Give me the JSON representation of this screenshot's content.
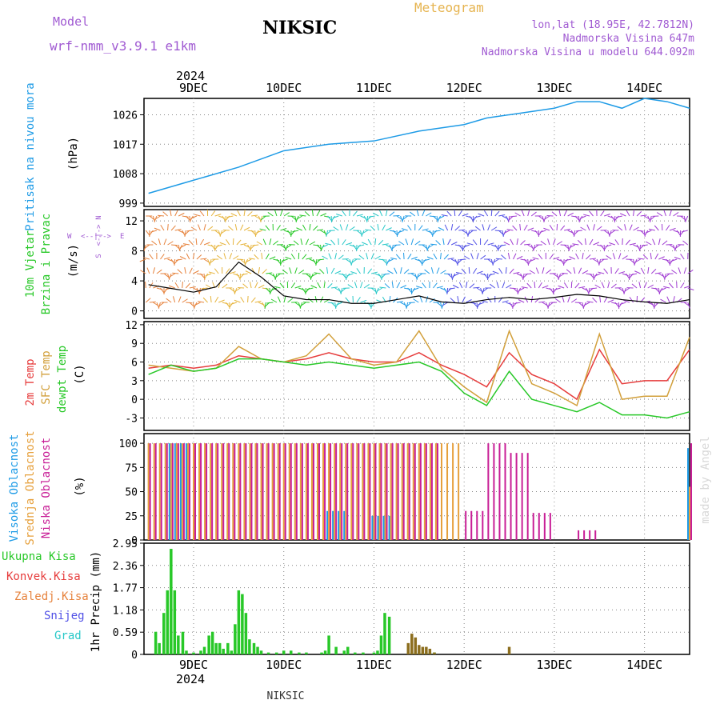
{
  "header": {
    "model_label": "Model",
    "model_name": "wrf-nmm_v3.9.1  e1km",
    "station": "NIKSIC",
    "product": "Meteogram",
    "lonlat": "lon,lat (18.95E, 42.7812N)",
    "elevation": "Nadmorska Visina 647m",
    "model_elevation": "Nadmorska Visina u modelu 644.092m"
  },
  "footer": {
    "station": "NIKSIC",
    "watermark": "made by Angel"
  },
  "time_axis": {
    "year": "2024",
    "days": [
      "9DEC",
      "10DEC",
      "11DEC",
      "12DEC",
      "13DEC",
      "14DEC"
    ]
  },
  "panels": {
    "pressure": {
      "label": "Pritisak na nivou mora",
      "unit": "(hPa)"
    },
    "wind": {
      "label_1": "10m Vjetar",
      "label_2": "Brzina i Pravac",
      "unit": "(m/s)",
      "compass_n": "N",
      "compass_w": "W",
      "compass_e": "E",
      "compass_s": "S",
      "compass_ns": "<-|->",
      "compass_we": "<--|-->"
    },
    "temp": {
      "label_1": "2m Temp",
      "label_2": "SFC Temp",
      "label_3": "dewpt Temp",
      "unit": "(C)"
    },
    "cloud": {
      "label_1": "Visoka Oblacnost",
      "label_2": "Srednja Oblacnost",
      "label_3": "Niska Oblacnost",
      "unit": "(%)"
    },
    "precip": {
      "legend_1": "Ukupna Kisa",
      "legend_2": "Konvek.Kisa",
      "legend_3": "Zaledj.Kisa",
      "legend_4": "Snijeg",
      "legend_5": "Grad",
      "unit": "1hr Precip (mm)"
    }
  },
  "colors": {
    "pressure": "#1e9be6",
    "t2m": "#e63c3c",
    "tsfc": "#d2a03c",
    "dewpt": "#28c828",
    "high_cloud": "#1e9be6",
    "mid_cloud": "#e6a03c",
    "low_cloud": "#c81e96",
    "total_rain": "#28c828",
    "conv_rain": "#e63c3c",
    "freezing_rain": "#e6823c",
    "snow": "#5050e6",
    "graupel": "#28c8c8",
    "wind_speed": "#000000"
  },
  "chart_data": [
    {
      "type": "line",
      "title": "Pritisak na nivou mora",
      "ylabel": "(hPa)",
      "x": [
        8.5,
        9.0,
        9.5,
        10.0,
        10.5,
        11.0,
        11.5,
        12.0,
        12.25,
        12.5,
        12.75,
        13.0,
        13.25,
        13.5,
        13.75,
        14.0,
        14.25,
        14.5
      ],
      "series": [
        {
          "values": [
            1002,
            1006,
            1010,
            1015,
            1017,
            1018,
            1021,
            1023,
            1025,
            1026,
            1027,
            1028,
            1030,
            1030,
            1028,
            1031,
            1030,
            1028
          ]
        }
      ],
      "yticks": [
        1008,
        1017,
        1026,
        999
      ],
      "ylim": [
        998,
        1031
      ]
    },
    {
      "type": "line",
      "title": "10m Vjetar Brzina i Pravac",
      "ylabel": "(m/s)",
      "x": [
        8.5,
        8.75,
        9.0,
        9.25,
        9.5,
        9.75,
        10.0,
        10.25,
        10.5,
        10.75,
        11.0,
        11.25,
        11.5,
        11.75,
        12.0,
        12.25,
        12.5,
        12.75,
        13.0,
        13.25,
        13.5,
        13.75,
        14.0,
        14.25,
        14.5
      ],
      "series": [
        {
          "name": "Brzina",
          "values": [
            3.5,
            3.0,
            2.5,
            3.2,
            6.5,
            4.5,
            2.0,
            1.5,
            1.5,
            1.0,
            1.0,
            1.5,
            2.0,
            1.2,
            1.0,
            1.5,
            1.8,
            1.5,
            1.8,
            2.2,
            2.0,
            1.5,
            1.2,
            1.0,
            1.5
          ]
        }
      ],
      "yticks": [
        0,
        4,
        8,
        12
      ],
      "ylim": [
        -1,
        13.5
      ]
    },
    {
      "type": "line",
      "title": "2m Temp / SFC Temp / dewpt Temp",
      "ylabel": "(C)",
      "x": [
        8.5,
        8.75,
        9.0,
        9.25,
        9.5,
        9.75,
        10.0,
        10.25,
        10.5,
        10.75,
        11.0,
        11.25,
        11.5,
        11.75,
        12.0,
        12.25,
        12.5,
        12.75,
        13.0,
        13.25,
        13.5,
        13.75,
        14.0,
        14.25,
        14.5
      ],
      "series": [
        {
          "name": "2m Temp",
          "values": [
            5.0,
            5.5,
            5.0,
            5.5,
            7.0,
            6.5,
            6.0,
            6.5,
            7.5,
            6.5,
            6.0,
            6.0,
            7.5,
            5.5,
            4.0,
            2.0,
            7.5,
            4.0,
            2.5,
            0.0,
            8.0,
            2.5,
            3.0,
            3.0,
            8.0
          ]
        },
        {
          "name": "SFC Temp",
          "values": [
            5.5,
            5.0,
            4.5,
            5.0,
            8.5,
            6.5,
            6.0,
            7.0,
            10.5,
            6.5,
            5.5,
            6.0,
            11.0,
            5.0,
            2.0,
            -0.5,
            11.0,
            2.5,
            1.0,
            -1.0,
            10.5,
            0.0,
            0.5,
            0.5,
            10.0
          ]
        },
        {
          "name": "dewpt Temp",
          "values": [
            4.0,
            5.5,
            4.5,
            5.0,
            6.5,
            6.5,
            6.0,
            5.5,
            6.0,
            5.5,
            5.0,
            5.5,
            6.0,
            4.5,
            1.0,
            -1.0,
            4.5,
            0.0,
            -1.0,
            -2.0,
            -0.5,
            -2.5,
            -2.5,
            -3.0,
            -2.0
          ]
        }
      ],
      "yticks": [
        -3,
        0,
        3,
        6,
        9,
        12
      ],
      "ylim": [
        -5,
        12.5
      ]
    },
    {
      "type": "bar",
      "title": "Visoka / Srednja / Niska Oblacnost",
      "ylabel": "(%)",
      "x": [
        8.5,
        8.75,
        9.0,
        9.25,
        9.5,
        9.75,
        10.0,
        10.25,
        10.5,
        10.75,
        11.0,
        11.25,
        11.5,
        11.75,
        12.0,
        12.25,
        12.5,
        12.75,
        13.0,
        13.25,
        13.5,
        13.75,
        14.0,
        14.25,
        14.5
      ],
      "series": [
        {
          "name": "Visoka Oblacnost",
          "values": [
            0,
            100,
            0,
            0,
            0,
            0,
            0,
            0,
            30,
            0,
            25,
            0,
            0,
            0,
            0,
            0,
            0,
            0,
            0,
            0,
            0,
            0,
            0,
            0,
            95
          ]
        },
        {
          "name": "Srednja Oblacnost",
          "values": [
            100,
            100,
            100,
            100,
            100,
            100,
            100,
            100,
            100,
            100,
            100,
            100,
            100,
            100,
            0,
            0,
            0,
            0,
            0,
            0,
            0,
            0,
            0,
            0,
            55
          ]
        },
        {
          "name": "Niska Oblacnost",
          "values": [
            100,
            100,
            100,
            100,
            100,
            100,
            100,
            100,
            100,
            100,
            100,
            100,
            100,
            0,
            30,
            100,
            90,
            28,
            0,
            10,
            0,
            0,
            0,
            0,
            100
          ]
        }
      ],
      "yticks": [
        0,
        25,
        50,
        75,
        100
      ],
      "ylim": [
        0,
        110
      ]
    },
    {
      "type": "bar",
      "title": "1hr Precip",
      "ylabel": "1hr Precip (mm)",
      "x": [
        8.58,
        8.62,
        8.67,
        8.71,
        8.75,
        8.79,
        8.83,
        8.88,
        8.92,
        9.0,
        9.08,
        9.12,
        9.17,
        9.21,
        9.25,
        9.29,
        9.33,
        9.38,
        9.42,
        9.46,
        9.5,
        9.54,
        9.58,
        9.62,
        9.67,
        9.71,
        9.75,
        9.83,
        9.92,
        10.0,
        10.08,
        10.17,
        10.25,
        10.42,
        10.46,
        10.5,
        10.58,
        10.67,
        10.71,
        10.79,
        10.88,
        11.0,
        11.04,
        11.08,
        11.12,
        11.17,
        11.38,
        11.42,
        11.46,
        11.5,
        11.54,
        11.58,
        11.62,
        11.67,
        12.5
      ],
      "series": [
        {
          "name": "Ukupna Kisa",
          "values": [
            0.6,
            0.3,
            1.1,
            1.7,
            2.8,
            1.7,
            0.5,
            0.6,
            0.1,
            0.05,
            0.1,
            0.2,
            0.5,
            0.6,
            0.3,
            0.3,
            0.15,
            0.3,
            0.1,
            0.8,
            1.7,
            1.6,
            1.1,
            0.4,
            0.3,
            0.2,
            0.1,
            0.05,
            0.05,
            0.1,
            0.1,
            0.05,
            0.05,
            0.05,
            0.1,
            0.5,
            0.2,
            0.1,
            0.2,
            0.05,
            0.05,
            0.05,
            0.1,
            0.5,
            1.1,
            1.0,
            0.05,
            0.05,
            0.05,
            0.05,
            0.05,
            0.05,
            0.05,
            0.05,
            0.0
          ]
        },
        {
          "name": "Zaledj.Kisa",
          "values": [
            0,
            0,
            0,
            0,
            0,
            0,
            0,
            0,
            0,
            0,
            0,
            0,
            0,
            0,
            0,
            0,
            0,
            0,
            0,
            0,
            0,
            0,
            0,
            0,
            0,
            0,
            0,
            0,
            0,
            0,
            0,
            0,
            0,
            0,
            0,
            0,
            0,
            0,
            0,
            0,
            0,
            0,
            0,
            0,
            0,
            0,
            0.3,
            0.55,
            0.45,
            0.25,
            0.2,
            0.2,
            0.15,
            0.05,
            0.2
          ]
        }
      ],
      "yticks": [
        0,
        0.59,
        1.18,
        1.77,
        2.36,
        2.95
      ],
      "ylim": [
        0,
        2.95
      ]
    }
  ]
}
